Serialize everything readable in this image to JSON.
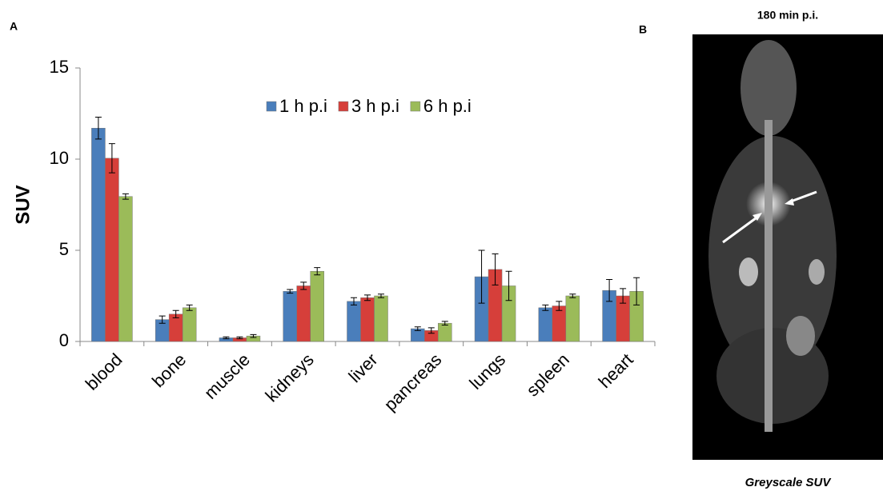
{
  "chart_data": {
    "type": "bar",
    "panel_label": "A",
    "y_label": "SUV",
    "categories": [
      "blood",
      "bone",
      "muscle",
      "kidneys",
      "liver",
      "pancreas",
      "lungs",
      "spleen",
      "heart"
    ],
    "series": [
      {
        "name": "1 h p.i",
        "color": "#4a7ebb",
        "values": [
          11.7,
          1.2,
          0.2,
          2.75,
          2.2,
          0.7,
          3.55,
          1.85,
          2.8
        ],
        "errors": [
          0.6,
          0.2,
          0.05,
          0.1,
          0.2,
          0.1,
          1.45,
          0.15,
          0.6
        ]
      },
      {
        "name": "3 h p.i",
        "color": "#d63f3a",
        "values": [
          10.05,
          1.5,
          0.2,
          3.05,
          2.4,
          0.6,
          3.95,
          1.95,
          2.5
        ],
        "errors": [
          0.8,
          0.2,
          0.05,
          0.2,
          0.15,
          0.15,
          0.85,
          0.25,
          0.4
        ]
      },
      {
        "name": "6 h p.i",
        "color": "#9bbb59",
        "values": [
          7.95,
          1.85,
          0.3,
          3.85,
          2.5,
          1.0,
          3.05,
          2.5,
          2.75
        ],
        "errors": [
          0.15,
          0.15,
          0.08,
          0.2,
          0.1,
          0.1,
          0.8,
          0.1,
          0.75
        ]
      }
    ],
    "ylim": [
      0,
      15
    ],
    "yticks": [
      0,
      5,
      10,
      15
    ]
  },
  "image_panel": {
    "panel_label": "B",
    "title": "180 min p.i.",
    "caption": "Greyscale SUV"
  }
}
